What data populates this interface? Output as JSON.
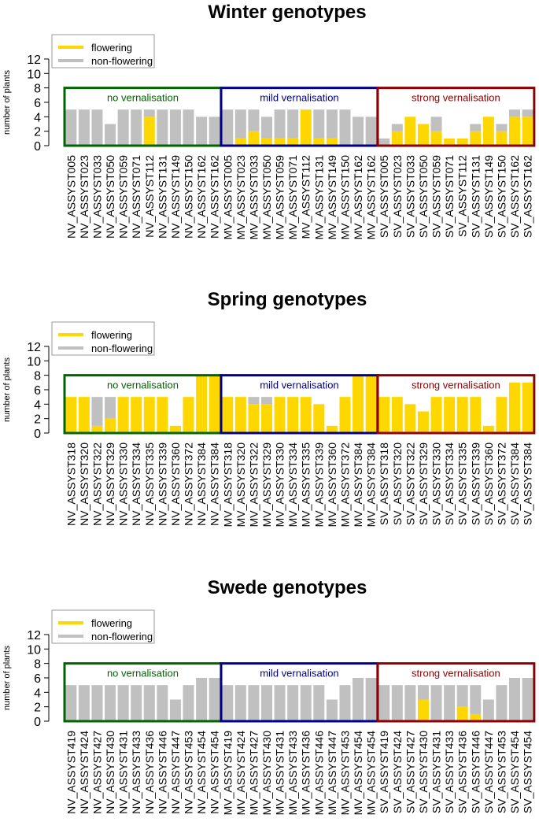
{
  "colors": {
    "flowering": "#FFD700",
    "non_flowering": "#C0C0C0",
    "no_vernalisation": "#006400",
    "mild_vernalisation": "#00008B",
    "strong_vernalisation": "#8B0000"
  },
  "chart_data": [
    {
      "type": "bar",
      "title": "Winter genotypes",
      "ylabel": "number of plants",
      "ylim": [
        0,
        12
      ],
      "yticks": [
        0,
        2,
        4,
        6,
        8,
        10,
        12
      ],
      "legend": {
        "placement": "top-left",
        "entries": [
          "flowering",
          "non-flowering"
        ]
      },
      "groups": [
        {
          "label": "no vernalisation",
          "color_key": "no_vernalisation",
          "start": 0,
          "count": 12
        },
        {
          "label": "mild vernalisation",
          "color_key": "mild_vernalisation",
          "start": 12,
          "count": 12
        },
        {
          "label": "strong vernalisation",
          "color_key": "strong_vernalisation",
          "start": 24,
          "count": 12
        }
      ],
      "categories": [
        "NV_ASSYST005",
        "NV_ASSYST023",
        "NV_ASSYST033",
        "NV_ASSYST050",
        "NV_ASSYST059",
        "NV_ASSYST071",
        "NV_ASSYST112",
        "NV_ASSYST131",
        "NV_ASSYST149",
        "NV_ASSYST150",
        "NV_ASSYST162",
        "NV_ASSYST162",
        "MV_ASSYST005",
        "MV_ASSYST023",
        "MV_ASSYST033",
        "MV_ASSYST050",
        "MV_ASSYST059",
        "MV_ASSYST071",
        "MV_ASSYST112",
        "MV_ASSYST131",
        "MV_ASSYST149",
        "MV_ASSYST150",
        "MV_ASSYST162",
        "MV_ASSYST162",
        "SV_ASSYST005",
        "SV_ASSYST023",
        "SV_ASSYST033",
        "SV_ASSYST050",
        "SV_ASSYST059",
        "SV_ASSYST071",
        "SV_ASSYST112",
        "SV_ASSYST131",
        "SV_ASSYST149",
        "SV_ASSYST150",
        "SV_ASSYST162",
        "SV_ASSYST162"
      ],
      "series": [
        {
          "name": "flowering",
          "values": [
            0,
            0,
            0,
            0,
            0,
            0,
            4,
            0,
            0,
            0,
            0,
            0,
            0,
            1,
            2,
            1,
            1,
            1,
            5,
            1,
            1,
            0,
            0,
            0,
            0,
            2,
            4,
            3,
            2,
            1,
            1,
            2,
            4,
            2,
            4,
            4
          ]
        },
        {
          "name": "non-flowering",
          "values": [
            5,
            5,
            5,
            3,
            5,
            5,
            1,
            5,
            5,
            5,
            4,
            4,
            5,
            4,
            3,
            3,
            4,
            4,
            0,
            4,
            4,
            5,
            4,
            4,
            1,
            1,
            0,
            0,
            2,
            0,
            0,
            1,
            0,
            1,
            1,
            1
          ]
        }
      ]
    },
    {
      "type": "bar",
      "title": "Spring genotypes",
      "ylabel": "number of plants",
      "ylim": [
        0,
        12
      ],
      "yticks": [
        0,
        2,
        4,
        6,
        8,
        10,
        12
      ],
      "legend": {
        "placement": "top-left",
        "entries": [
          "flowering",
          "non-flowering"
        ]
      },
      "groups": [
        {
          "label": "no vernalisation",
          "color_key": "no_vernalisation",
          "start": 0,
          "count": 12
        },
        {
          "label": "mild vernalisation",
          "color_key": "mild_vernalisation",
          "start": 12,
          "count": 12
        },
        {
          "label": "strong vernalisation",
          "color_key": "strong_vernalisation",
          "start": 24,
          "count": 12
        }
      ],
      "categories": [
        "NV_ASSYST318",
        "NV_ASSYST320",
        "NV_ASSYST322",
        "NV_ASSYST329",
        "NV_ASSYST330",
        "NV_ASSYST334",
        "NV_ASSYST335",
        "NV_ASSYST339",
        "NV_ASSYST360",
        "NV_ASSYST372",
        "NV_ASSYST384",
        "NV_ASSYST384",
        "MV_ASSYST318",
        "MV_ASSYST320",
        "MV_ASSYST322",
        "MV_ASSYST329",
        "MV_ASSYST330",
        "MV_ASSYST334",
        "MV_ASSYST335",
        "MV_ASSYST339",
        "MV_ASSYST360",
        "MV_ASSYST372",
        "MV_ASSYST384",
        "MV_ASSYST384",
        "SV_ASSYST318",
        "SV_ASSYST320",
        "SV_ASSYST322",
        "SV_ASSYST329",
        "SV_ASSYST330",
        "SV_ASSYST334",
        "SV_ASSYST335",
        "SV_ASSYST339",
        "SV_ASSYST360",
        "SV_ASSYST372",
        "SV_ASSYST384",
        "SV_ASSYST384"
      ],
      "series": [
        {
          "name": "flowering",
          "values": [
            5,
            5,
            1,
            2,
            5,
            5,
            5,
            5,
            1,
            5,
            8,
            8,
            5,
            5,
            4,
            4,
            5,
            5,
            5,
            4,
            1,
            5,
            8,
            8,
            5,
            5,
            4,
            3,
            5,
            5,
            5,
            5,
            1,
            5,
            7,
            7
          ]
        },
        {
          "name": "non-flowering",
          "values": [
            0,
            0,
            4,
            3,
            0,
            0,
            0,
            0,
            0,
            0,
            0,
            0,
            0,
            0,
            1,
            1,
            0,
            0,
            0,
            0,
            0,
            0,
            0,
            0,
            0,
            0,
            0,
            0,
            0,
            0,
            0,
            0,
            0,
            0,
            0,
            0
          ]
        }
      ]
    },
    {
      "type": "bar",
      "title": "Swede genotypes",
      "ylabel": "number of plants",
      "ylim": [
        0,
        12
      ],
      "yticks": [
        0,
        2,
        4,
        6,
        8,
        10,
        12
      ],
      "legend": {
        "placement": "top-left",
        "entries": [
          "flowering",
          "non-flowering"
        ]
      },
      "groups": [
        {
          "label": "no vernalisation",
          "color_key": "no_vernalisation",
          "start": 0,
          "count": 12
        },
        {
          "label": "mild vernalisation",
          "color_key": "mild_vernalisation",
          "start": 12,
          "count": 12
        },
        {
          "label": "strong vernalisation",
          "color_key": "strong_vernalisation",
          "start": 24,
          "count": 12
        }
      ],
      "categories": [
        "NV_ASSYST419",
        "NV_ASSYST424",
        "NV_ASSYST427",
        "NV_ASSYST430",
        "NV_ASSYST431",
        "NV_ASSYST433",
        "NV_ASSYST436",
        "NV_ASSYST446",
        "NV_ASSYST447",
        "NV_ASSYST453",
        "NV_ASSYST454",
        "NV_ASSYST454",
        "MV_ASSYST419",
        "MV_ASSYST424",
        "MV_ASSYST427",
        "MV_ASSYST430",
        "MV_ASSYST431",
        "MV_ASSYST433",
        "MV_ASSYST436",
        "MV_ASSYST446",
        "MV_ASSYST447",
        "MV_ASSYST453",
        "MV_ASSYST454",
        "MV_ASSYST454",
        "SV_ASSYST419",
        "SV_ASSYST424",
        "SV_ASSYST427",
        "SV_ASSYST430",
        "SV_ASSYST431",
        "SV_ASSYST433",
        "SV_ASSYST436",
        "SV_ASSYST446",
        "SV_ASSYST447",
        "SV_ASSYST453",
        "SV_ASSYST454",
        "SV_ASSYST454"
      ],
      "series": [
        {
          "name": "flowering",
          "values": [
            0,
            0,
            0,
            0,
            0,
            0,
            0,
            0,
            0,
            0,
            0,
            0,
            0,
            0,
            0,
            0,
            0,
            0,
            0,
            0,
            0,
            0,
            0,
            0,
            0,
            0,
            0,
            3,
            0,
            0,
            2,
            1,
            0,
            0,
            0,
            0
          ]
        },
        {
          "name": "non-flowering",
          "values": [
            5,
            5,
            5,
            5,
            5,
            5,
            5,
            5,
            3,
            5,
            6,
            6,
            5,
            5,
            5,
            5,
            5,
            5,
            5,
            5,
            3,
            5,
            6,
            6,
            5,
            5,
            5,
            2,
            5,
            5,
            3,
            4,
            3,
            5,
            6,
            6
          ]
        }
      ]
    }
  ]
}
